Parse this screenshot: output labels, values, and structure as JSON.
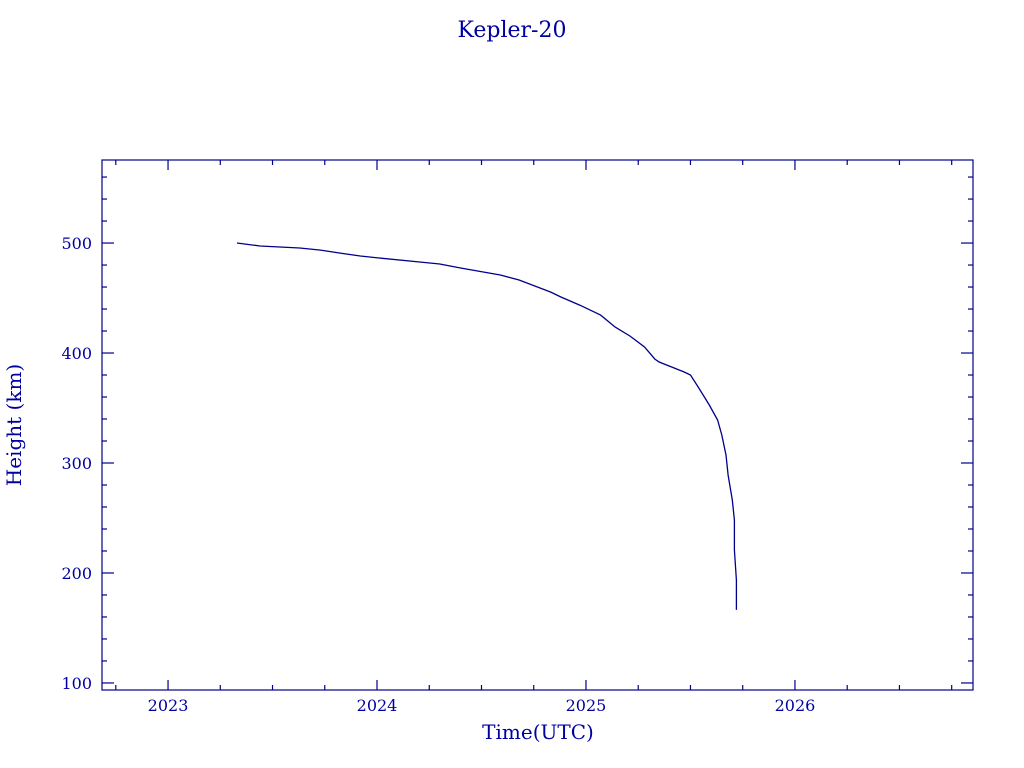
{
  "chart_data": {
    "type": "line",
    "title": "Kepler-20",
    "xlabel": "Time(UTC)",
    "ylabel": "Height (km)",
    "xlim": [
      2022.684,
      2026.852
    ],
    "ylim": [
      93.6,
      575.5
    ],
    "x_ticks": [
      2023,
      2024,
      2025,
      2026
    ],
    "x_tick_labels": [
      "2023",
      "2024",
      "2025",
      "2026"
    ],
    "x_minor_step": 0.25,
    "y_ticks": [
      100,
      200,
      300,
      400,
      500
    ],
    "y_tick_labels": [
      "100",
      "200",
      "300",
      "400",
      "500"
    ],
    "y_minor_step": 20,
    "grid": false,
    "color": "#00008b",
    "series": [
      {
        "x": [
          2023.33,
          2023.44,
          2023.63,
          2023.73,
          2023.82,
          2023.92,
          2024.01,
          2024.21,
          2024.3,
          2024.4,
          2024.59,
          2024.68,
          2024.83,
          2024.88,
          2024.97,
          2025.07,
          2025.14,
          2025.21,
          2025.28,
          2025.33,
          2025.35,
          2025.47,
          2025.5,
          2025.54,
          2025.59,
          2025.63,
          2025.65,
          2025.67,
          2025.68,
          2025.7,
          2025.71,
          2025.71,
          2025.72,
          2025.72
        ],
        "y": [
          500,
          497.3,
          495.5,
          493.6,
          490.9,
          488.2,
          486.4,
          482.7,
          480.9,
          477.3,
          470.9,
          466.4,
          455.5,
          450.9,
          443.6,
          434.5,
          423.6,
          415.5,
          405.5,
          394.5,
          391.8,
          382.7,
          380,
          368.2,
          352.7,
          339.1,
          325.5,
          307.3,
          289.1,
          266.4,
          248.2,
          220.9,
          193.6,
          166.4
        ]
      }
    ]
  }
}
